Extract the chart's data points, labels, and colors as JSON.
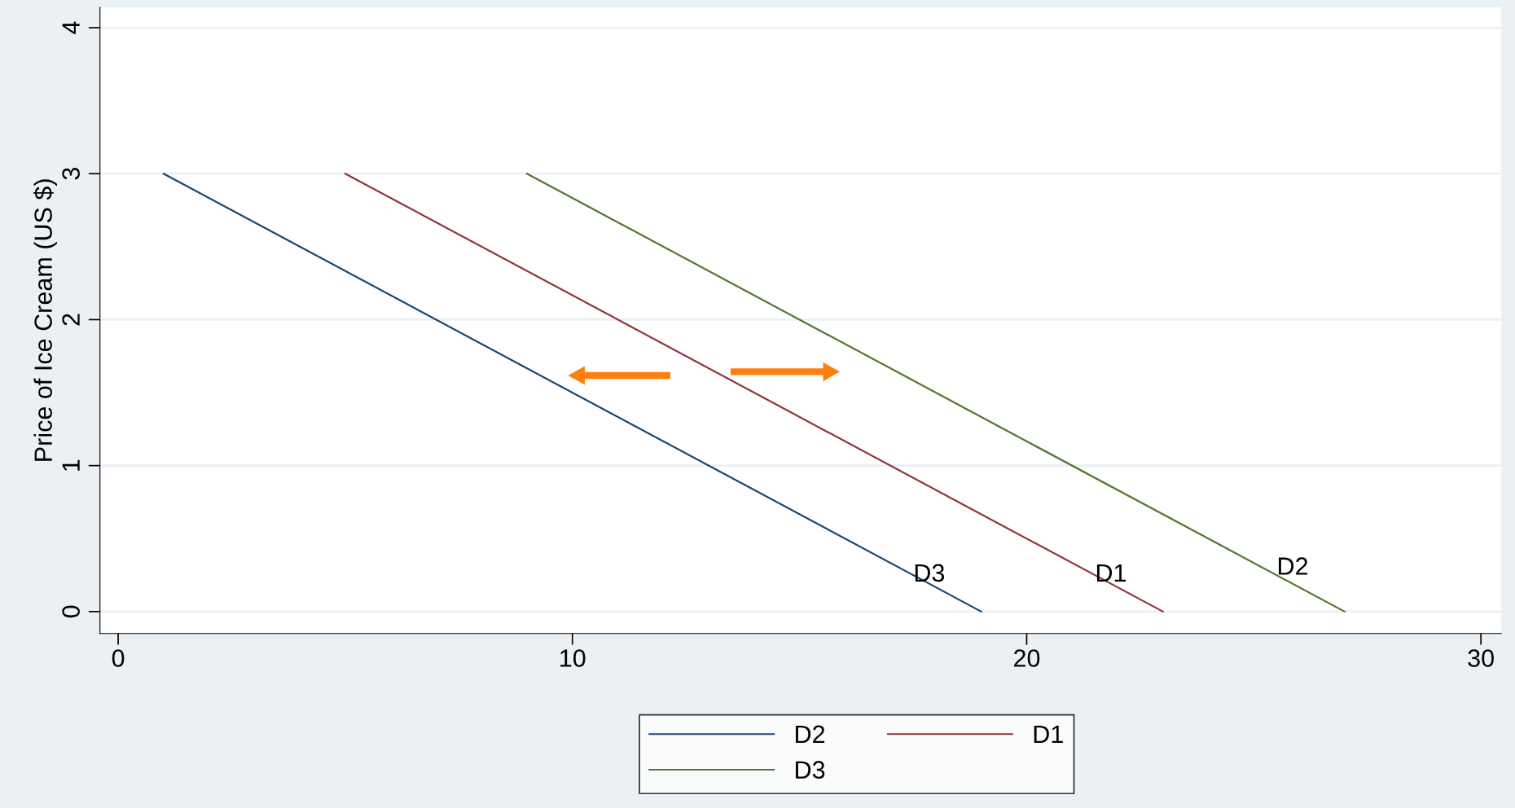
{
  "chart_data": {
    "type": "line",
    "ylabel": "Price of Ice Cream (US $)",
    "series": [
      {
        "name": "D2",
        "color": "#1a476f",
        "x": [
          1,
          19
        ],
        "values": [
          3,
          0
        ]
      },
      {
        "name": "D1",
        "color": "#90353b",
        "x": [
          5,
          23
        ],
        "values": [
          3,
          0
        ]
      },
      {
        "name": "D3",
        "color": "#55752f",
        "x": [
          9,
          27
        ],
        "values": [
          3,
          0
        ]
      }
    ],
    "annotations": [
      "D3",
      "D1",
      "D2"
    ],
    "xlim": [
      -0.4,
      30.45
    ],
    "ylim": [
      -0.15,
      4.14
    ],
    "xticks": [
      0,
      10,
      20,
      30
    ],
    "yticks": [
      0,
      1,
      2,
      3,
      4
    ],
    "grid": "y",
    "legend": "bottom",
    "marker": "none",
    "line_style": "solid"
  }
}
